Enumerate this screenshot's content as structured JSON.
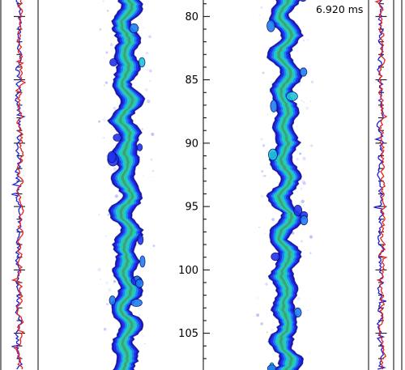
{
  "chart_data": {
    "type": "image-panels-with-profiles",
    "time_label": "6.920 ms",
    "y_axis": {
      "range": [
        78.7,
        107.9
      ],
      "ticks": [
        80,
        85,
        90,
        95,
        100,
        105
      ],
      "tick_labels": [
        "80",
        "85",
        "90",
        "95",
        "100",
        "105"
      ],
      "minor_step": 1
    },
    "profiles": {
      "colors": {
        "a": "#e3241e",
        "b": "#1f1fd8"
      }
    },
    "colormap": [
      "#2233ee",
      "#1e7ff0",
      "#1fc4d6",
      "#32c99a",
      "#3a9a78"
    ]
  }
}
